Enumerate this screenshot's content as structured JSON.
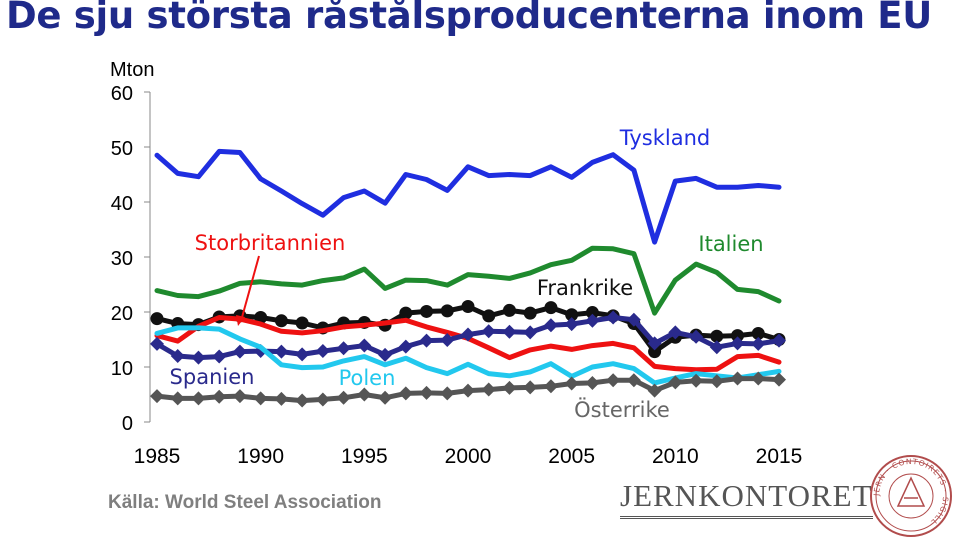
{
  "title": "De sju största råstålsproducenterna inom EU",
  "source": "Källa: World Steel Association",
  "logo_text": "JERNKONTORET",
  "seal_text": "JERN · CONTOIRETS · SIGILL",
  "chart_data": {
    "type": "line",
    "title": "De sju största råstålsproducenterna inom EU",
    "ylabel": "Mton",
    "xlabel": "",
    "xlim": [
      1985,
      2015
    ],
    "ylim": [
      0,
      60
    ],
    "xticks": [
      "1985",
      "1990",
      "1995",
      "2000",
      "2005",
      "2010",
      "2015"
    ],
    "yticks": [
      "0",
      "10",
      "20",
      "30",
      "40",
      "50",
      "60"
    ],
    "grid": false,
    "legend": "inline labels",
    "x": [
      1985,
      1986,
      1987,
      1988,
      1989,
      1990,
      1991,
      1992,
      1993,
      1994,
      1995,
      1996,
      1997,
      1998,
      1999,
      2000,
      2001,
      2002,
      2003,
      2004,
      2005,
      2006,
      2007,
      2008,
      2009,
      2010,
      2011,
      2012,
      2013,
      2014,
      2015
    ],
    "series": [
      {
        "name": "Tyskland",
        "color": "#1f2ee0",
        "marker": "none",
        "values": [
          48.5,
          45.2,
          44.6,
          49.2,
          49.0,
          44.2,
          42.0,
          39.7,
          37.6,
          40.8,
          42.0,
          39.8,
          45.0,
          44.1,
          42.1,
          46.4,
          44.8,
          45.0,
          44.8,
          46.4,
          44.5,
          47.2,
          48.6,
          45.8,
          32.7,
          43.8,
          44.3,
          42.7,
          42.7,
          43.0,
          42.7
        ]
      },
      {
        "name": "Italien",
        "color": "#1f8a2e",
        "marker": "none",
        "values": [
          23.9,
          23.0,
          22.8,
          23.8,
          25.2,
          25.5,
          25.1,
          24.9,
          25.7,
          26.2,
          27.8,
          24.3,
          25.8,
          25.7,
          24.9,
          26.8,
          26.5,
          26.1,
          27.1,
          28.6,
          29.4,
          31.6,
          31.5,
          30.6,
          19.8,
          25.8,
          28.7,
          27.2,
          24.1,
          23.7,
          22.0
        ]
      },
      {
        "name": "Frankrike",
        "color": "#111111",
        "marker": "circle",
        "values": [
          18.8,
          17.9,
          17.7,
          19.1,
          19.3,
          19.0,
          18.4,
          18.0,
          17.1,
          18.0,
          18.1,
          17.6,
          19.8,
          20.1,
          20.2,
          21.0,
          19.3,
          20.3,
          19.8,
          20.8,
          19.5,
          19.9,
          19.3,
          17.9,
          12.8,
          15.4,
          15.8,
          15.6,
          15.7,
          16.1,
          15.0
        ]
      },
      {
        "name": "Storbritannien",
        "color": "#ee1111",
        "marker": "none",
        "values": [
          15.7,
          14.7,
          17.4,
          19.0,
          18.7,
          17.8,
          16.5,
          16.2,
          16.6,
          17.3,
          17.6,
          18.0,
          18.5,
          17.3,
          16.3,
          15.2,
          13.5,
          11.7,
          13.1,
          13.8,
          13.2,
          13.9,
          14.3,
          13.5,
          10.1,
          9.7,
          9.5,
          9.6,
          11.9,
          12.1,
          10.9
        ]
      },
      {
        "name": "Spanien",
        "color": "#2a2a8c",
        "marker": "diamond",
        "values": [
          14.2,
          12.0,
          11.7,
          11.9,
          12.8,
          12.9,
          12.8,
          12.3,
          12.9,
          13.4,
          13.9,
          12.2,
          13.7,
          14.8,
          14.9,
          15.9,
          16.5,
          16.4,
          16.3,
          17.6,
          17.8,
          18.4,
          19.0,
          18.6,
          14.3,
          16.3,
          15.5,
          13.6,
          14.3,
          14.2,
          14.8
        ]
      },
      {
        "name": "Polen",
        "color": "#22c8ee",
        "marker": "none",
        "values": [
          16.1,
          17.1,
          17.1,
          16.9,
          15.1,
          13.6,
          10.4,
          9.9,
          10.0,
          11.1,
          11.9,
          10.4,
          11.6,
          9.9,
          8.8,
          10.5,
          8.8,
          8.4,
          9.1,
          10.6,
          8.3,
          10.0,
          10.6,
          9.7,
          7.1,
          8.0,
          8.8,
          8.4,
          8.0,
          8.6,
          9.2
        ]
      },
      {
        "name": "Österrike",
        "color": "#555555",
        "marker": "diamond",
        "values": [
          4.7,
          4.3,
          4.3,
          4.6,
          4.7,
          4.3,
          4.2,
          3.9,
          4.1,
          4.4,
          5.0,
          4.4,
          5.2,
          5.3,
          5.2,
          5.7,
          5.9,
          6.2,
          6.3,
          6.5,
          7.0,
          7.1,
          7.6,
          7.6,
          5.7,
          7.2,
          7.5,
          7.4,
          7.9,
          7.9,
          7.7
        ]
      }
    ],
    "annotations": [
      {
        "text": "Tyskland",
        "series": "Tyskland"
      },
      {
        "text": "Italien",
        "series": "Italien"
      },
      {
        "text": "Frankrike",
        "series": "Frankrike"
      },
      {
        "text": "Storbritannien",
        "series": "Storbritannien"
      },
      {
        "text": "Spanien",
        "series": "Spanien"
      },
      {
        "text": "Polen",
        "series": "Polen"
      },
      {
        "text": "Österrike",
        "series": "Österrike"
      }
    ]
  }
}
